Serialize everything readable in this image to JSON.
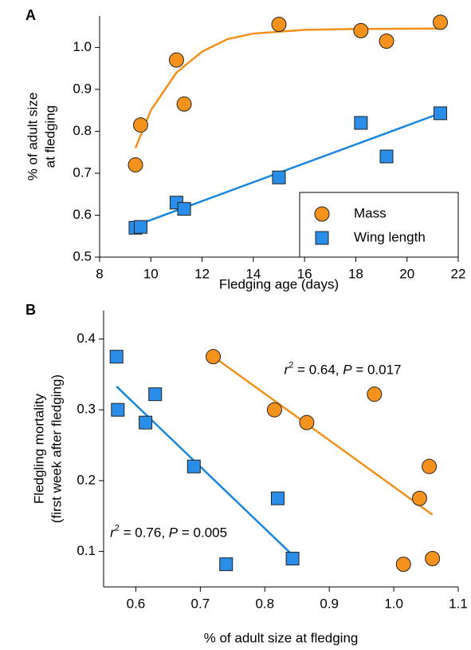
{
  "chart_data": [
    {
      "type": "scatter",
      "panel": "A",
      "x_label": "Fledging age (days)",
      "y_label": [
        "% of adult size",
        "at fledging"
      ],
      "xlim": [
        8,
        22
      ],
      "xticks": [
        8,
        10,
        12,
        14,
        16,
        18,
        20,
        22
      ],
      "ylim": [
        0.5,
        1.075
      ],
      "yticks": [
        0.5,
        0.6,
        0.7,
        0.8,
        0.9,
        {
          "value": 1.0,
          "label": "1.0"
        }
      ],
      "legend": "lower right",
      "series": [
        {
          "name": "Mass",
          "marker": "circle",
          "color": "#f5921e",
          "x": [
            9.4,
            9.6,
            11.0,
            11.3,
            15.0,
            18.2,
            19.2,
            21.3
          ],
          "values": [
            0.72,
            0.815,
            0.97,
            0.865,
            1.055,
            1.04,
            1.015,
            1.06
          ]
        },
        {
          "name": "Wing length",
          "marker": "square",
          "color": "#2a8ee8",
          "x": [
            9.4,
            9.6,
            11.0,
            11.3,
            15.0,
            18.2,
            19.2,
            21.3
          ],
          "values": [
            0.57,
            0.572,
            0.63,
            0.615,
            0.69,
            0.82,
            0.74,
            0.843
          ]
        },
        {
          "marker": "line",
          "color": "#f39019",
          "x": [
            9.4,
            10,
            11,
            12,
            13,
            14,
            16,
            18,
            21.3
          ],
          "values": [
            0.76,
            0.85,
            0.94,
            0.99,
            1.02,
            1.033,
            1.042,
            1.044,
            1.045
          ]
        },
        {
          "marker": "line",
          "color": "#1a86e0",
          "x": [
            9.4,
            21.3
          ],
          "values": [
            0.575,
            0.843
          ]
        }
      ]
    },
    {
      "type": "scatter",
      "panel": "B",
      "x_label": "% of adult size at fledging",
      "y_label": [
        "Fledgling mortality",
        "(first week after fledging)"
      ],
      "xlim": [
        0.55,
        1.1
      ],
      "xticks": [
        0.6,
        0.7,
        0.8,
        0.9,
        {
          "value": 1.0,
          "label": "1.0"
        },
        1.1
      ],
      "ylim": [
        0.05,
        0.44
      ],
      "yticks": [
        0.1,
        0.2,
        0.3,
        0.4
      ],
      "annotations": [
        {
          "parts": [
            "r",
            "2",
            " = 0.64, ",
            "P",
            " = 0.017"
          ],
          "x": 0.83,
          "y": 0.355
        },
        {
          "parts": [
            "r",
            "2",
            " = 0.76, ",
            "P",
            " = 0.005"
          ],
          "x": 0.56,
          "y": 0.125
        }
      ],
      "series": [
        {
          "marker": "circle",
          "color": "#f5921e",
          "x": [
            0.72,
            0.815,
            0.97,
            0.865,
            1.055,
            1.04,
            1.015,
            1.06
          ],
          "values": [
            0.375,
            0.3,
            0.322,
            0.282,
            0.22,
            0.175,
            0.082,
            0.09
          ]
        },
        {
          "marker": "square",
          "color": "#2a8ee8",
          "x": [
            0.57,
            0.572,
            0.63,
            0.615,
            0.69,
            0.82,
            0.74,
            0.843
          ],
          "values": [
            0.375,
            0.3,
            0.322,
            0.282,
            0.22,
            0.175,
            0.082,
            0.09
          ]
        },
        {
          "marker": "line",
          "color": "#f39019",
          "x": [
            0.725,
            1.06
          ],
          "values": [
            0.372,
            0.152
          ]
        },
        {
          "marker": "line",
          "color": "#1a86e0",
          "x": [
            0.57,
            0.843
          ],
          "values": [
            0.333,
            0.095
          ]
        }
      ]
    }
  ]
}
